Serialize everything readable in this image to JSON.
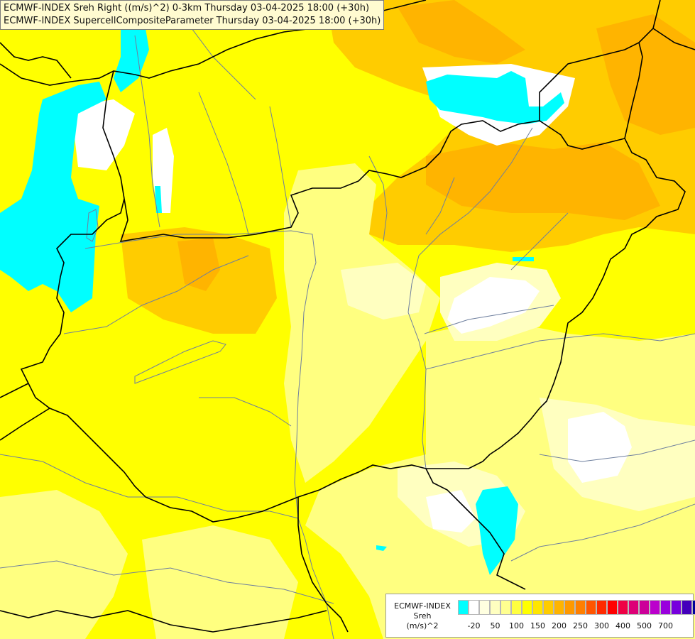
{
  "header": {
    "line1": "ECMWF-INDEX Sreh Right ((m/s)^2) 0-3km Thursday 03-04-2025 18:00 (+30h)",
    "line2": "ECMWF-INDEX SupercellCompositeParameter Thursday 03-04-2025 18:00 (+30h)"
  },
  "legend": {
    "title_lines": [
      "ECMWF-INDEX",
      "Sreh",
      "(m/s)^2"
    ],
    "colors": [
      "#00ffff",
      "#ffffff",
      "#ffffe0",
      "#ffffc0",
      "#ffff90",
      "#ffff40",
      "#ffff00",
      "#ffe600",
      "#ffcc00",
      "#ffb400",
      "#ff9900",
      "#ff7f00",
      "#ff5500",
      "#ff2a00",
      "#ff0000",
      "#ee0044",
      "#dd0077",
      "#cc0099",
      "#bb00cc",
      "#9900dd",
      "#7700dd",
      "#4400bb",
      "#000099"
    ],
    "tick_labels": [
      "-20",
      "50",
      "100",
      "150",
      "200",
      "250",
      "300",
      "400",
      "500",
      "700"
    ]
  },
  "map_style": {
    "base_color": "#ffff00",
    "border_color": "#000000",
    "river_color": "#6e7f9e",
    "fields": {
      "cyan": "#00ffff",
      "white": "#ffffff",
      "pale": "#ffffc0",
      "light": "#ffff80",
      "gold": "#ffe600",
      "orange_light": "#ffcc00",
      "orange": "#ffb400"
    }
  }
}
